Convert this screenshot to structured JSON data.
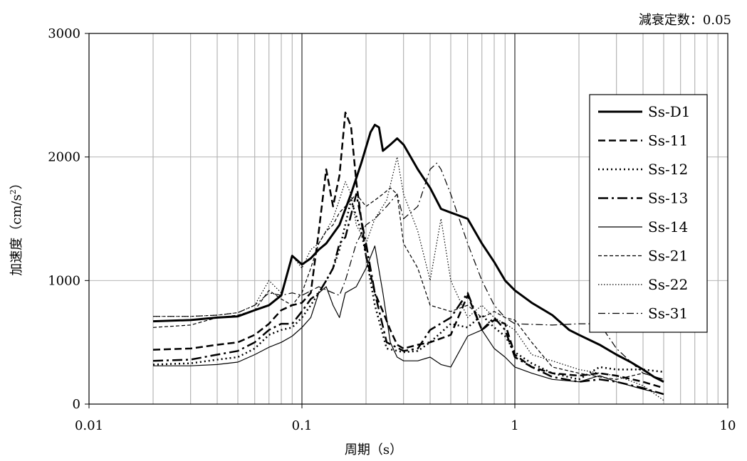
{
  "annotation": "減衰定数：0.05",
  "chart_data": {
    "type": "line",
    "xscale": "log",
    "xlim": [
      0.01,
      10
    ],
    "ylim": [
      0,
      3000
    ],
    "grid": true,
    "legend_position": "top-right",
    "xlabel": "周期（s）",
    "ylabel_main": "加速度（cm/s",
    "ylabel_sup": "2",
    "ylabel_end": "）",
    "x_ticks": [
      {
        "v": 0.01,
        "label": "0.01"
      },
      {
        "v": 0.1,
        "label": "0.1"
      },
      {
        "v": 1,
        "label": "1"
      },
      {
        "v": 10,
        "label": "10"
      }
    ],
    "y_ticks": [
      {
        "v": 0,
        "label": "0"
      },
      {
        "v": 1000,
        "label": "1000"
      },
      {
        "v": 2000,
        "label": "2000"
      },
      {
        "v": 3000,
        "label": "3000"
      }
    ],
    "series": [
      {
        "name": "Ss-D1",
        "width": 3,
        "dash": "",
        "points": [
          [
            0.02,
            670
          ],
          [
            0.03,
            680
          ],
          [
            0.04,
            700
          ],
          [
            0.05,
            710
          ],
          [
            0.06,
            760
          ],
          [
            0.07,
            800
          ],
          [
            0.08,
            880
          ],
          [
            0.09,
            1200
          ],
          [
            0.1,
            1130
          ],
          [
            0.11,
            1180
          ],
          [
            0.12,
            1250
          ],
          [
            0.13,
            1300
          ],
          [
            0.15,
            1450
          ],
          [
            0.17,
            1700
          ],
          [
            0.19,
            1950
          ],
          [
            0.21,
            2200
          ],
          [
            0.22,
            2260
          ],
          [
            0.23,
            2240
          ],
          [
            0.24,
            2050
          ],
          [
            0.26,
            2100
          ],
          [
            0.28,
            2150
          ],
          [
            0.3,
            2100
          ],
          [
            0.35,
            1900
          ],
          [
            0.4,
            1750
          ],
          [
            0.45,
            1580
          ],
          [
            0.5,
            1550
          ],
          [
            0.6,
            1500
          ],
          [
            0.7,
            1300
          ],
          [
            0.8,
            1150
          ],
          [
            0.9,
            1000
          ],
          [
            1.0,
            920
          ],
          [
            1.2,
            820
          ],
          [
            1.5,
            720
          ],
          [
            1.8,
            600
          ],
          [
            2.0,
            560
          ],
          [
            2.5,
            480
          ],
          [
            3.0,
            400
          ],
          [
            3.5,
            340
          ],
          [
            4.0,
            280
          ],
          [
            4.5,
            220
          ],
          [
            5.0,
            180
          ]
        ]
      },
      {
        "name": "Ss-11",
        "width": 2.5,
        "dash": "10,5",
        "points": [
          [
            0.02,
            440
          ],
          [
            0.03,
            450
          ],
          [
            0.04,
            480
          ],
          [
            0.05,
            500
          ],
          [
            0.06,
            560
          ],
          [
            0.07,
            650
          ],
          [
            0.08,
            760
          ],
          [
            0.09,
            800
          ],
          [
            0.1,
            820
          ],
          [
            0.11,
            900
          ],
          [
            0.12,
            1400
          ],
          [
            0.13,
            1900
          ],
          [
            0.14,
            1600
          ],
          [
            0.15,
            1850
          ],
          [
            0.16,
            2360
          ],
          [
            0.17,
            2250
          ],
          [
            0.18,
            1800
          ],
          [
            0.2,
            1200
          ],
          [
            0.22,
            900
          ],
          [
            0.24,
            750
          ],
          [
            0.26,
            600
          ],
          [
            0.28,
            480
          ],
          [
            0.3,
            450
          ],
          [
            0.35,
            480
          ],
          [
            0.4,
            500
          ],
          [
            0.5,
            560
          ],
          [
            0.6,
            880
          ],
          [
            0.7,
            600
          ],
          [
            0.8,
            680
          ],
          [
            0.9,
            650
          ],
          [
            1.0,
            400
          ],
          [
            1.2,
            300
          ],
          [
            1.5,
            250
          ],
          [
            2.0,
            230
          ],
          [
            2.5,
            250
          ],
          [
            3.0,
            230
          ],
          [
            4.0,
            180
          ],
          [
            5.0,
            130
          ]
        ]
      },
      {
        "name": "Ss-12",
        "width": 2.5,
        "dash": "2,4",
        "points": [
          [
            0.02,
            320
          ],
          [
            0.03,
            330
          ],
          [
            0.04,
            360
          ],
          [
            0.05,
            380
          ],
          [
            0.06,
            450
          ],
          [
            0.07,
            560
          ],
          [
            0.08,
            600
          ],
          [
            0.09,
            620
          ],
          [
            0.1,
            700
          ],
          [
            0.11,
            800
          ],
          [
            0.12,
            900
          ],
          [
            0.13,
            1000
          ],
          [
            0.14,
            1100
          ],
          [
            0.15,
            1250
          ],
          [
            0.17,
            1650
          ],
          [
            0.19,
            1400
          ],
          [
            0.2,
            1200
          ],
          [
            0.22,
            800
          ],
          [
            0.25,
            450
          ],
          [
            0.3,
            420
          ],
          [
            0.35,
            430
          ],
          [
            0.4,
            500
          ],
          [
            0.5,
            650
          ],
          [
            0.6,
            620
          ],
          [
            0.7,
            720
          ],
          [
            0.8,
            620
          ],
          [
            0.9,
            550
          ],
          [
            1.0,
            420
          ],
          [
            1.2,
            330
          ],
          [
            1.5,
            250
          ],
          [
            2.0,
            200
          ],
          [
            2.5,
            300
          ],
          [
            3.0,
            280
          ],
          [
            4.0,
            280
          ],
          [
            5.0,
            260
          ]
        ]
      },
      {
        "name": "Ss-13",
        "width": 2.5,
        "dash": "14,5,3,5",
        "points": [
          [
            0.02,
            350
          ],
          [
            0.03,
            360
          ],
          [
            0.04,
            400
          ],
          [
            0.05,
            430
          ],
          [
            0.06,
            500
          ],
          [
            0.07,
            600
          ],
          [
            0.08,
            650
          ],
          [
            0.09,
            650
          ],
          [
            0.1,
            750
          ],
          [
            0.11,
            850
          ],
          [
            0.12,
            900
          ],
          [
            0.13,
            1000
          ],
          [
            0.14,
            1100
          ],
          [
            0.15,
            1300
          ],
          [
            0.16,
            1350
          ],
          [
            0.18,
            1700
          ],
          [
            0.2,
            1300
          ],
          [
            0.22,
            900
          ],
          [
            0.25,
            500
          ],
          [
            0.3,
            430
          ],
          [
            0.35,
            450
          ],
          [
            0.4,
            600
          ],
          [
            0.5,
            700
          ],
          [
            0.6,
            900
          ],
          [
            0.7,
            600
          ],
          [
            0.8,
            700
          ],
          [
            0.9,
            600
          ],
          [
            1.0,
            380
          ],
          [
            1.2,
            300
          ],
          [
            1.5,
            220
          ],
          [
            2.0,
            180
          ],
          [
            2.5,
            200
          ],
          [
            3.0,
            180
          ],
          [
            4.0,
            130
          ],
          [
            5.0,
            80
          ]
        ]
      },
      {
        "name": "Ss-14",
        "width": 1.2,
        "dash": "",
        "points": [
          [
            0.02,
            310
          ],
          [
            0.03,
            310
          ],
          [
            0.04,
            320
          ],
          [
            0.05,
            340
          ],
          [
            0.06,
            400
          ],
          [
            0.07,
            460
          ],
          [
            0.08,
            500
          ],
          [
            0.09,
            550
          ],
          [
            0.1,
            620
          ],
          [
            0.11,
            700
          ],
          [
            0.12,
            900
          ],
          [
            0.13,
            950
          ],
          [
            0.14,
            800
          ],
          [
            0.15,
            700
          ],
          [
            0.16,
            900
          ],
          [
            0.18,
            950
          ],
          [
            0.2,
            1100
          ],
          [
            0.22,
            1280
          ],
          [
            0.24,
            900
          ],
          [
            0.26,
            500
          ],
          [
            0.28,
            380
          ],
          [
            0.3,
            350
          ],
          [
            0.35,
            350
          ],
          [
            0.4,
            380
          ],
          [
            0.45,
            320
          ],
          [
            0.5,
            300
          ],
          [
            0.6,
            550
          ],
          [
            0.7,
            600
          ],
          [
            0.8,
            450
          ],
          [
            0.9,
            380
          ],
          [
            1.0,
            300
          ],
          [
            1.2,
            250
          ],
          [
            1.5,
            200
          ],
          [
            2.0,
            180
          ],
          [
            2.5,
            230
          ],
          [
            3.0,
            180
          ],
          [
            4.0,
            120
          ],
          [
            5.0,
            80
          ]
        ]
      },
      {
        "name": "Ss-21",
        "width": 1.2,
        "dash": "5,3",
        "points": [
          [
            0.02,
            620
          ],
          [
            0.03,
            640
          ],
          [
            0.04,
            700
          ],
          [
            0.05,
            720
          ],
          [
            0.06,
            760
          ],
          [
            0.07,
            920
          ],
          [
            0.08,
            850
          ],
          [
            0.09,
            800
          ],
          [
            0.1,
            900
          ],
          [
            0.11,
            1100
          ],
          [
            0.12,
            1300
          ],
          [
            0.13,
            1400
          ],
          [
            0.14,
            1450
          ],
          [
            0.15,
            1550
          ],
          [
            0.16,
            1600
          ],
          [
            0.18,
            1700
          ],
          [
            0.2,
            1600
          ],
          [
            0.22,
            1650
          ],
          [
            0.24,
            1700
          ],
          [
            0.26,
            1750
          ],
          [
            0.28,
            1700
          ],
          [
            0.3,
            1300
          ],
          [
            0.35,
            1100
          ],
          [
            0.4,
            800
          ],
          [
            0.5,
            750
          ],
          [
            0.6,
            800
          ],
          [
            0.7,
            700
          ],
          [
            0.8,
            750
          ],
          [
            0.9,
            700
          ],
          [
            1.0,
            680
          ],
          [
            1.2,
            500
          ],
          [
            1.5,
            300
          ],
          [
            2.0,
            250
          ],
          [
            2.5,
            220
          ],
          [
            3.0,
            200
          ],
          [
            4.0,
            250
          ],
          [
            5.0,
            200
          ]
        ]
      },
      {
        "name": "Ss-22",
        "width": 1.2,
        "dash": "1.5,2.5",
        "points": [
          [
            0.02,
            710
          ],
          [
            0.03,
            710
          ],
          [
            0.04,
            720
          ],
          [
            0.05,
            740
          ],
          [
            0.06,
            800
          ],
          [
            0.07,
            1000
          ],
          [
            0.08,
            900
          ],
          [
            0.09,
            1200
          ],
          [
            0.1,
            1100
          ],
          [
            0.11,
            1250
          ],
          [
            0.12,
            1300
          ],
          [
            0.14,
            1500
          ],
          [
            0.16,
            1800
          ],
          [
            0.17,
            1700
          ],
          [
            0.18,
            1450
          ],
          [
            0.2,
            1300
          ],
          [
            0.22,
            1500
          ],
          [
            0.25,
            1650
          ],
          [
            0.28,
            2000
          ],
          [
            0.3,
            1700
          ],
          [
            0.35,
            1400
          ],
          [
            0.4,
            1000
          ],
          [
            0.45,
            1500
          ],
          [
            0.5,
            1000
          ],
          [
            0.6,
            700
          ],
          [
            0.7,
            800
          ],
          [
            0.8,
            700
          ],
          [
            0.9,
            650
          ],
          [
            1.0,
            600
          ],
          [
            1.2,
            400
          ],
          [
            1.5,
            350
          ],
          [
            2.0,
            280
          ],
          [
            2.5,
            250
          ],
          [
            3.0,
            230
          ],
          [
            4.0,
            150
          ],
          [
            5.0,
            30
          ]
        ]
      },
      {
        "name": "Ss-31",
        "width": 1.2,
        "dash": "10,4,2,4",
        "points": [
          [
            0.02,
            710
          ],
          [
            0.03,
            710
          ],
          [
            0.04,
            720
          ],
          [
            0.05,
            740
          ],
          [
            0.06,
            800
          ],
          [
            0.07,
            900
          ],
          [
            0.08,
            880
          ],
          [
            0.09,
            900
          ],
          [
            0.1,
            880
          ],
          [
            0.12,
            950
          ],
          [
            0.14,
            900
          ],
          [
            0.15,
            880
          ],
          [
            0.16,
            1000
          ],
          [
            0.18,
            1300
          ],
          [
            0.2,
            1450
          ],
          [
            0.22,
            1500
          ],
          [
            0.25,
            1600
          ],
          [
            0.28,
            1700
          ],
          [
            0.3,
            1500
          ],
          [
            0.35,
            1600
          ],
          [
            0.4,
            1900
          ],
          [
            0.43,
            1950
          ],
          [
            0.45,
            1900
          ],
          [
            0.5,
            1700
          ],
          [
            0.6,
            1300
          ],
          [
            0.7,
            1000
          ],
          [
            0.8,
            800
          ],
          [
            0.9,
            700
          ],
          [
            1.0,
            650
          ],
          [
            1.5,
            640
          ],
          [
            2.0,
            650
          ],
          [
            2.5,
            650
          ],
          [
            3.0,
            450
          ],
          [
            4.0,
            250
          ],
          [
            5.0,
            200
          ]
        ]
      }
    ]
  }
}
